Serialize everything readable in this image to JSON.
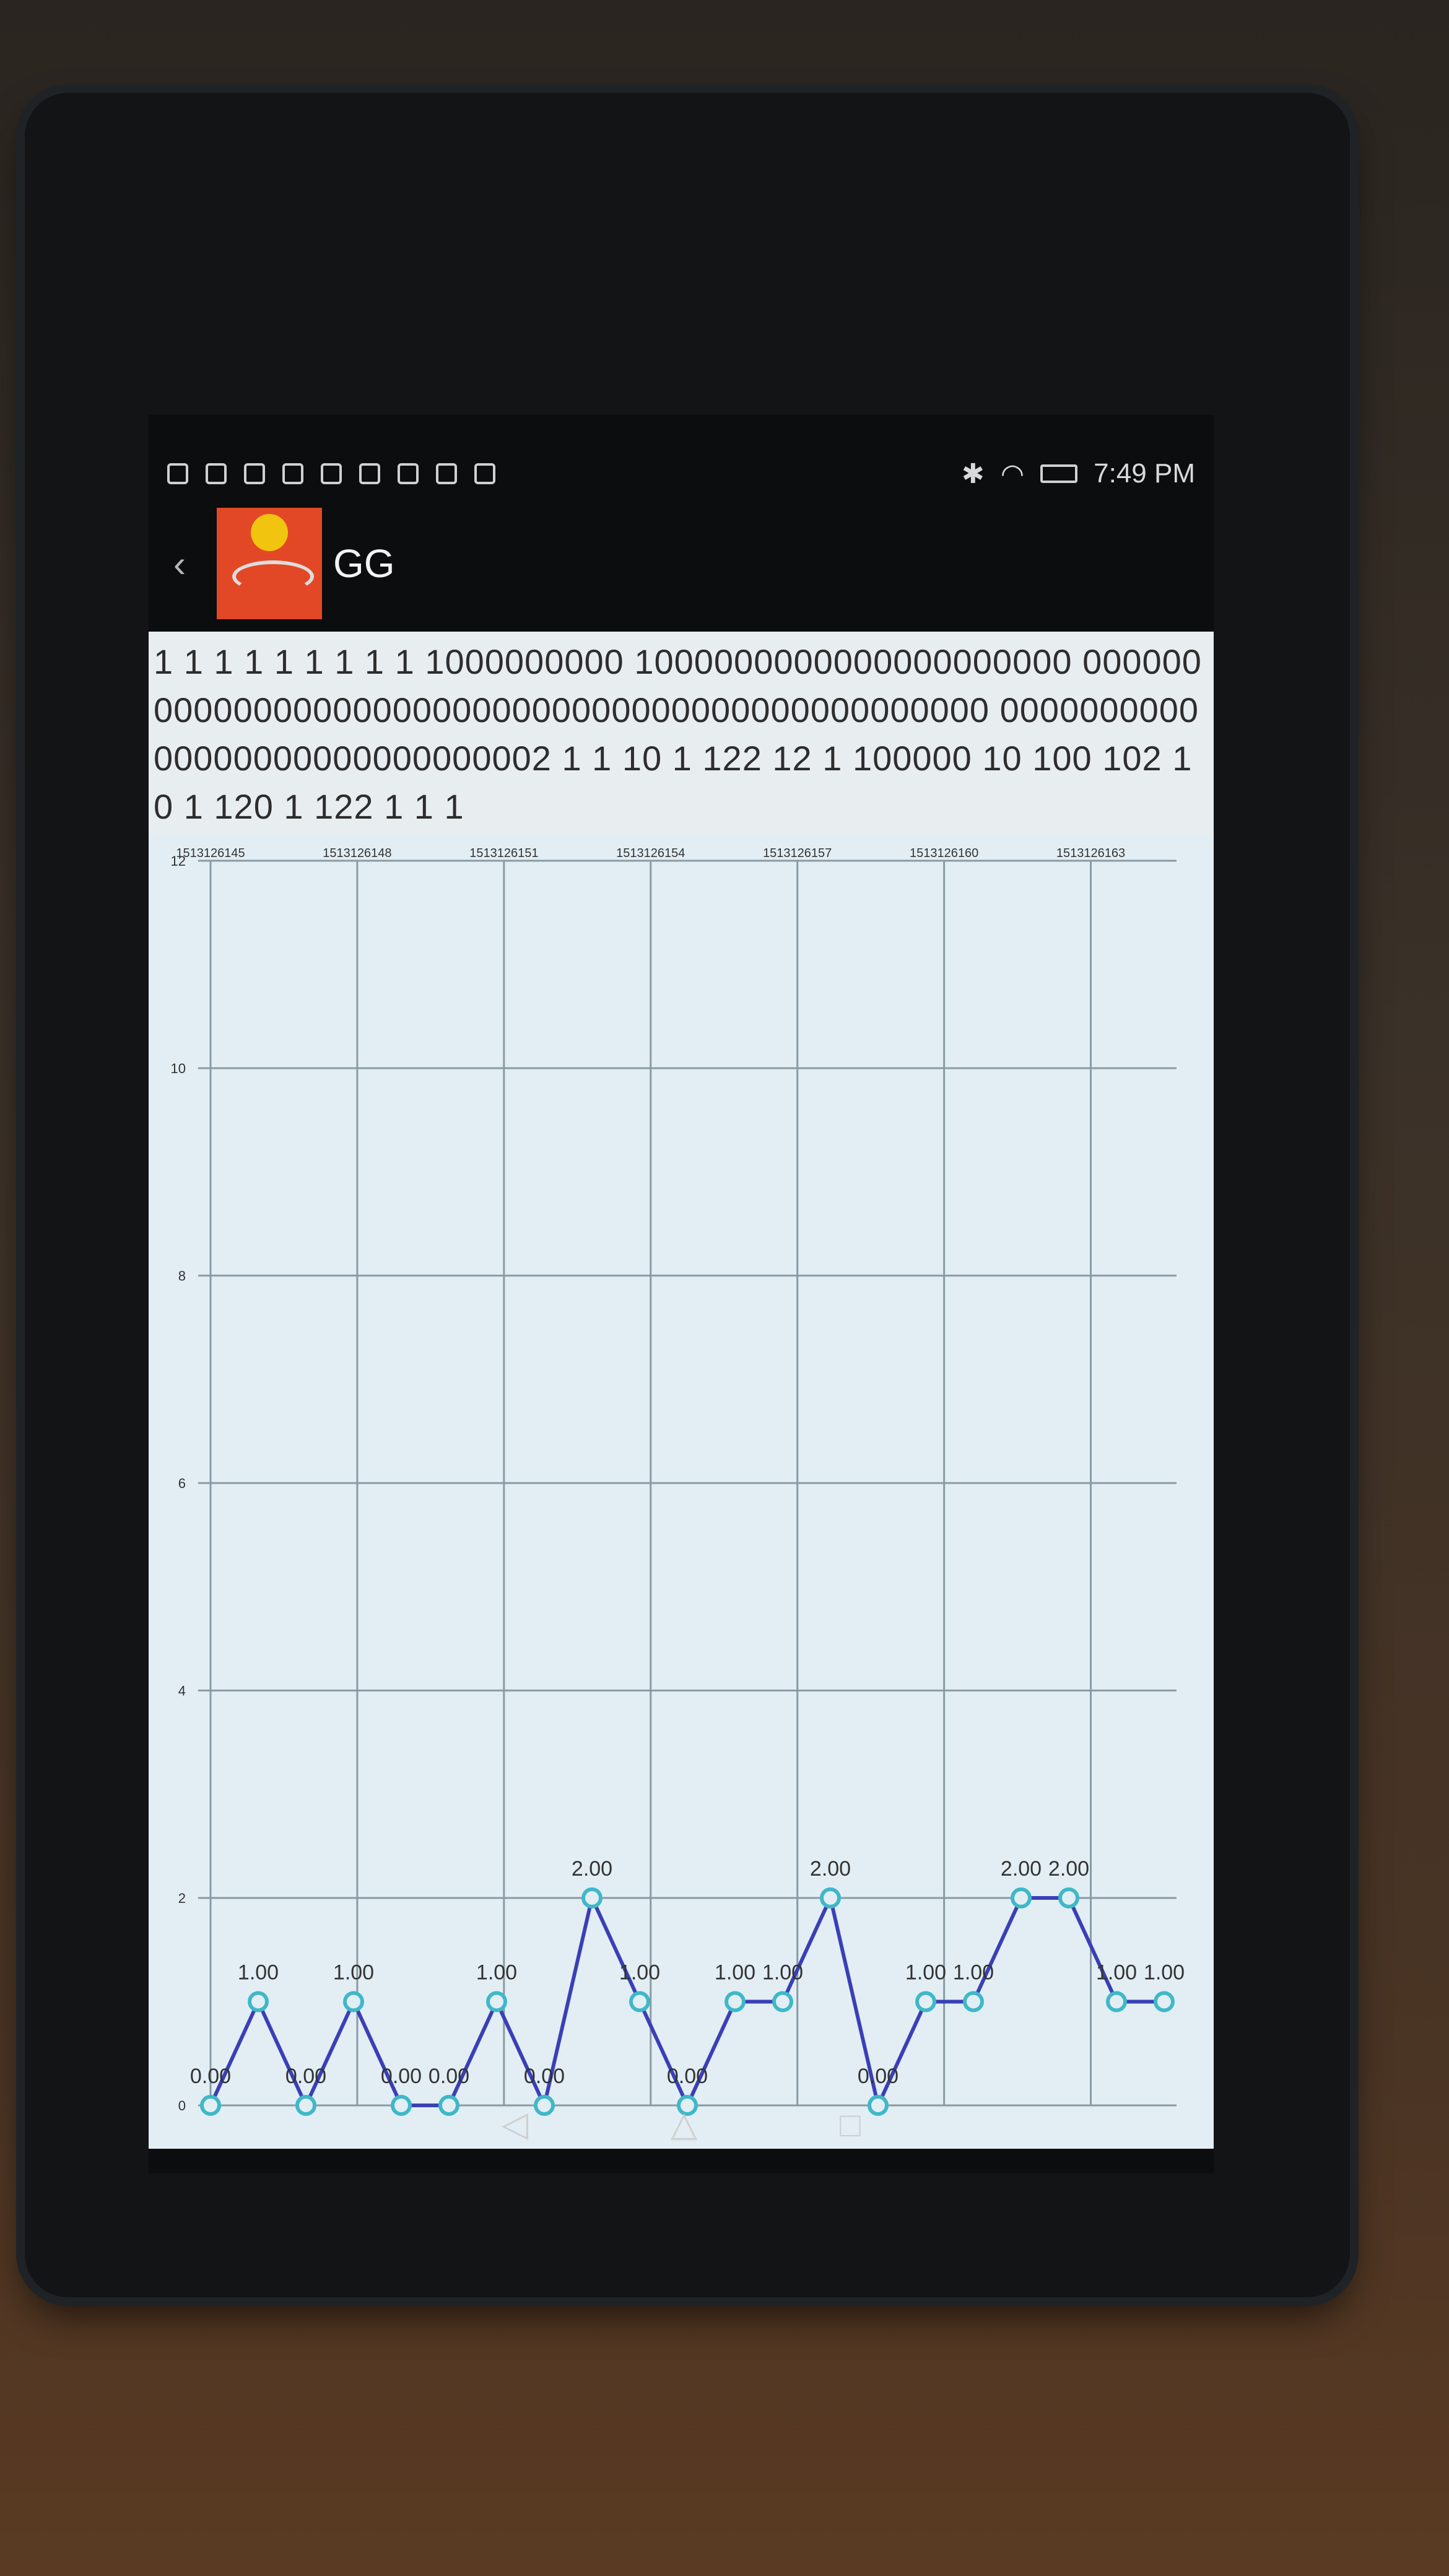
{
  "status": {
    "time": "7:49 PM"
  },
  "app": {
    "title": "GG",
    "back": "‹"
  },
  "binary_text": "1 1 1 1 1 1 1 1 1 1000000000 1000000000000000000000 000000000000000000000000000000000000000000000000 000000000000000000000000000002 1 1 10 1 122 12 1 100000 10 100 102 10 1 120 1 122 1 1 1",
  "chart_data": {
    "type": "line",
    "x_tick_labels": [
      "1513126145",
      "1513126148",
      "1513126151",
      "1513126154",
      "1513126157",
      "1513126160",
      "1513126163"
    ],
    "y_ticks": [
      0,
      2,
      4,
      6,
      8,
      10,
      12
    ],
    "ylim": [
      0,
      12
    ],
    "series": [
      {
        "values": [
          0,
          1,
          0,
          1,
          0,
          0,
          1,
          0,
          2,
          1,
          0,
          1,
          1,
          2,
          0,
          1,
          1,
          2,
          2,
          1,
          1
        ]
      }
    ],
    "point_labels": [
      "0.00",
      "1.00",
      "0.00",
      "1.00",
      "0.00",
      "0.00",
      "1.00",
      "0.00",
      "2.00",
      "1.00",
      "0.00",
      "1.00",
      "1.00",
      "2.00",
      "0.00",
      "1.00",
      "1.00",
      "2.00",
      "2.00",
      "1.00",
      "1.00"
    ],
    "colors": {
      "line": "#3b3fb6",
      "marker": "#3fb8c8"
    }
  },
  "nav": {
    "back": "◁",
    "home": "△",
    "recent": "□"
  }
}
